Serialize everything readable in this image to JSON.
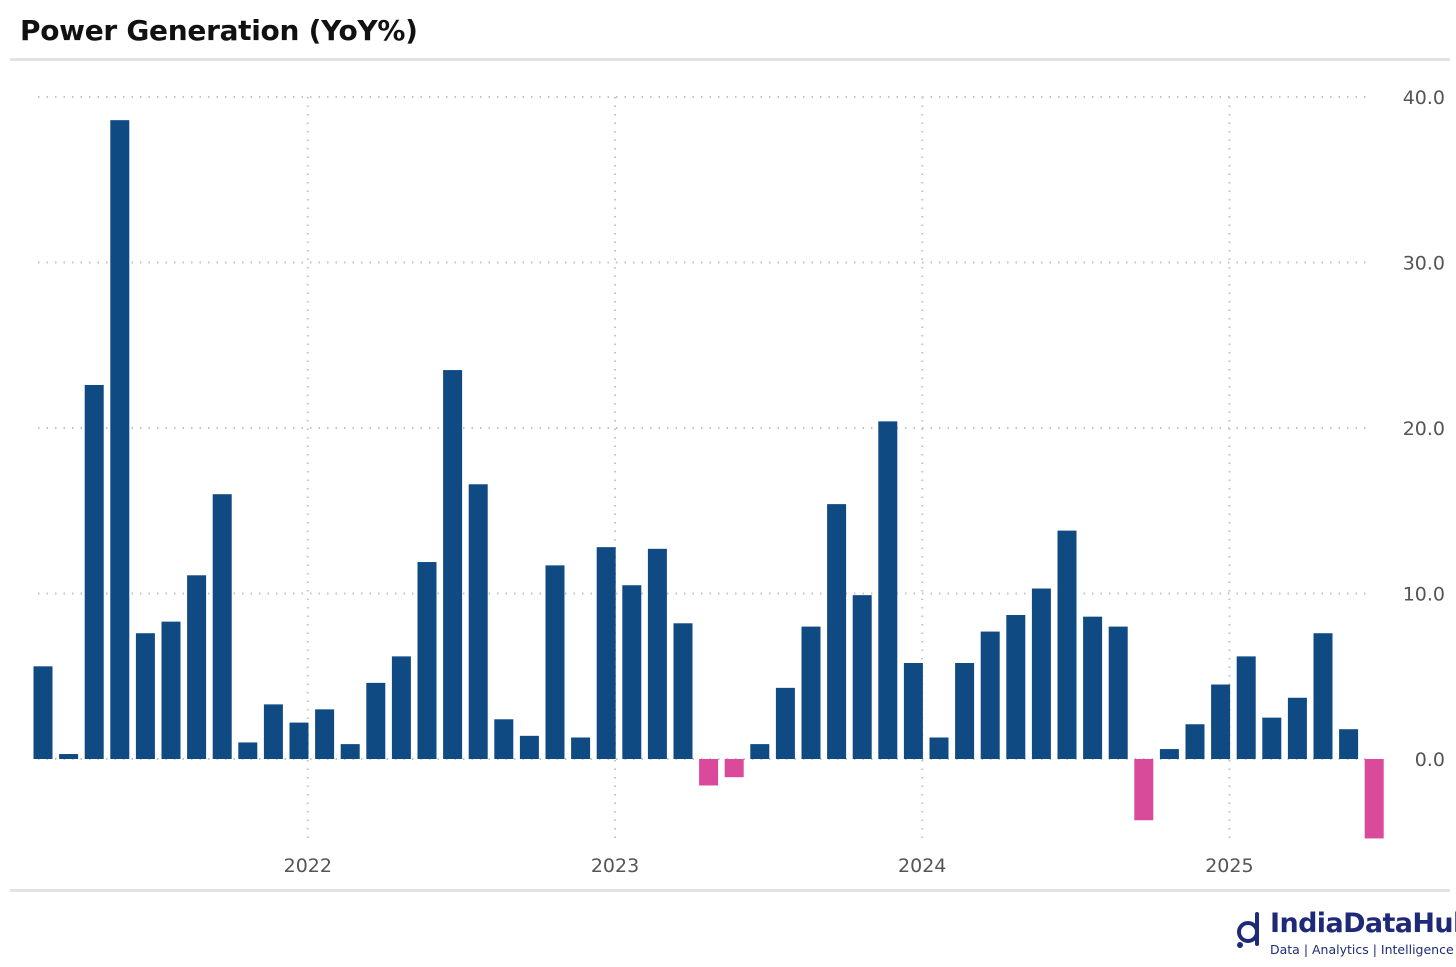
{
  "title": "Power Generation (YoY%)",
  "brand": {
    "name": "IndiaDataHub",
    "tagline": "Data | Analytics | Intelligence",
    "logo_icon": "indiadatahub-logo-icon",
    "color": "#1e2a78"
  },
  "chart_data": {
    "type": "bar",
    "title": "Power Generation (YoY%)",
    "xlabel": "",
    "ylabel": "",
    "x_tick_labels": [
      "2022",
      "2023",
      "2024",
      "2025"
    ],
    "y_tick_labels": [
      "0.0",
      "10.0",
      "20.0",
      "30.0",
      "40.0"
    ],
    "y_ticks": [
      0,
      10,
      20,
      30,
      40
    ],
    "ylim": [
      -5.5,
      41
    ],
    "y_axis_side": "right",
    "grid": true,
    "colors": {
      "positive": "#0f4a82",
      "negative": "#d94a9b"
    },
    "categories": [
      "2021-02",
      "2021-03",
      "2021-04",
      "2021-05",
      "2021-06",
      "2021-07",
      "2021-08",
      "2021-09",
      "2021-10",
      "2021-11",
      "2021-12",
      "2022-01",
      "2022-02",
      "2022-03",
      "2022-04",
      "2022-05",
      "2022-06",
      "2022-07",
      "2022-08",
      "2022-09",
      "2022-10",
      "2022-11",
      "2022-12",
      "2023-01",
      "2023-02",
      "2023-03",
      "2023-04",
      "2023-05",
      "2023-06",
      "2023-07",
      "2023-08",
      "2023-09",
      "2023-10",
      "2023-11",
      "2023-12",
      "2024-01",
      "2024-02",
      "2024-03",
      "2024-04",
      "2024-05",
      "2024-06",
      "2024-07",
      "2024-08",
      "2024-09",
      "2024-10",
      "2024-11",
      "2024-12",
      "2025-01",
      "2025-02",
      "2025-03",
      "2025-04",
      "2025-05",
      "2025-06"
    ],
    "values": [
      5.6,
      0.3,
      22.6,
      38.6,
      7.6,
      8.3,
      11.1,
      16.0,
      1.0,
      3.3,
      2.2,
      3.0,
      0.9,
      4.6,
      6.2,
      11.9,
      23.5,
      16.6,
      2.4,
      1.4,
      11.7,
      1.3,
      12.8,
      10.5,
      12.7,
      8.2,
      -1.6,
      -1.1,
      0.9,
      4.3,
      8.0,
      15.4,
      9.9,
      20.4,
      5.8,
      1.3,
      5.8,
      7.7,
      8.7,
      10.3,
      13.8,
      8.6,
      8.0,
      -3.7,
      0.6,
      2.1,
      4.5,
      6.2,
      2.5,
      3.7,
      7.6,
      1.8,
      -4.8
    ]
  }
}
